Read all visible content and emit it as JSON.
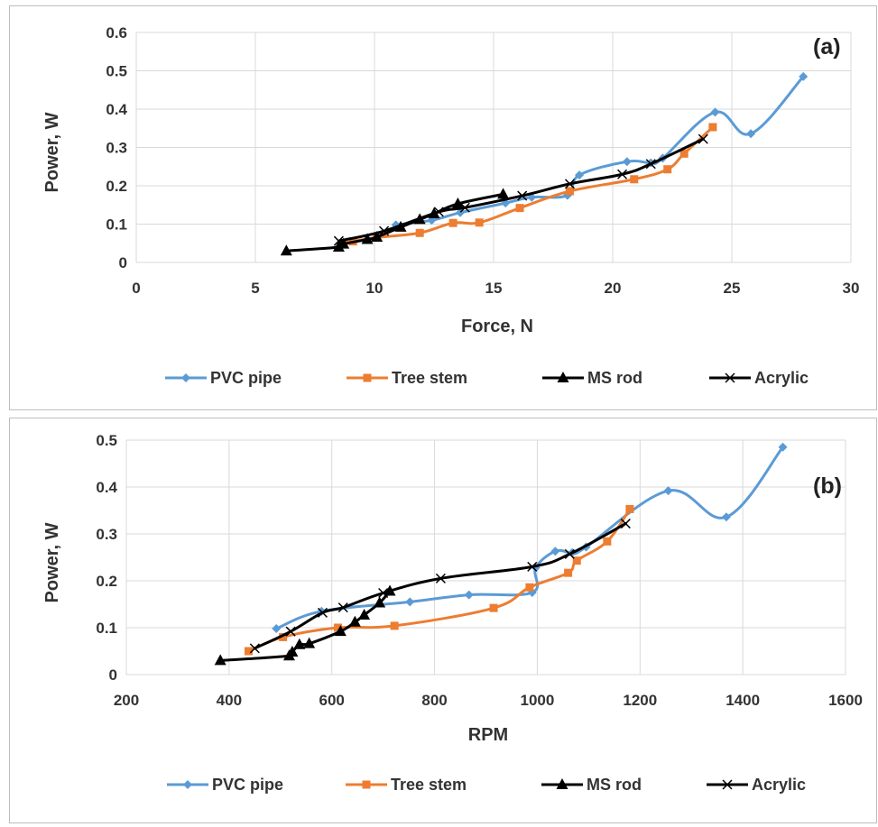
{
  "colors": {
    "pvc": "#5b9bd5",
    "tree": "#ed7d31",
    "ms": "#000000",
    "acrylic": "#000000",
    "grid": "#d9d9d9",
    "text": "#333333"
  },
  "chart_data": [
    {
      "type": "line",
      "panel_label": "(a)",
      "xlabel": "Force, N",
      "ylabel": "Power, W",
      "xlim": [
        0,
        30
      ],
      "ylim": [
        0,
        0.6
      ],
      "xticks": [
        0,
        5,
        10,
        15,
        20,
        25,
        30
      ],
      "yticks": [
        0,
        0.1,
        0.2,
        0.3,
        0.4,
        0.5,
        0.6
      ],
      "grid": true,
      "legend_position": "bottom",
      "series": [
        {
          "name": "PVC pipe",
          "marker": "diamond",
          "color": "#5b9bd5",
          "points": [
            [
              10.9,
              0.098
            ],
            [
              12.4,
              0.11
            ],
            [
              13.6,
              0.13
            ],
            [
              15.5,
              0.155
            ],
            [
              16.6,
              0.17
            ],
            [
              18.1,
              0.175
            ],
            [
              18.6,
              0.228
            ],
            [
              20.6,
              0.263
            ],
            [
              21.6,
              0.26
            ],
            [
              22.1,
              0.272
            ],
            [
              24.3,
              0.392
            ],
            [
              25.8,
              0.336
            ],
            [
              28.0,
              0.485
            ]
          ]
        },
        {
          "name": "Tree stem",
          "marker": "square",
          "color": "#ed7d31",
          "points": [
            [
              8.7,
              0.05
            ],
            [
              9.1,
              0.055
            ],
            [
              10.1,
              0.065
            ],
            [
              11.9,
              0.077
            ],
            [
              13.3,
              0.103
            ],
            [
              14.4,
              0.104
            ],
            [
              16.1,
              0.142
            ],
            [
              18.2,
              0.186
            ],
            [
              20.9,
              0.217
            ],
            [
              22.3,
              0.243
            ],
            [
              23.0,
              0.284
            ],
            [
              24.2,
              0.353
            ]
          ]
        },
        {
          "name": "MS rod",
          "marker": "triangle",
          "color": "#000000",
          "points": [
            [
              6.3,
              0.03
            ],
            [
              8.5,
              0.04
            ],
            [
              8.7,
              0.048
            ],
            [
              9.7,
              0.06
            ],
            [
              10.1,
              0.066
            ],
            [
              11.1,
              0.092
            ],
            [
              11.9,
              0.112
            ],
            [
              12.5,
              0.127
            ],
            [
              13.5,
              0.153
            ],
            [
              15.4,
              0.178
            ]
          ]
        },
        {
          "name": "Acrylic",
          "marker": "x",
          "color": "#000000",
          "points": [
            [
              8.5,
              0.056
            ],
            [
              10.4,
              0.082
            ],
            [
              12.7,
              0.132
            ],
            [
              13.8,
              0.143
            ],
            [
              16.2,
              0.174
            ],
            [
              18.2,
              0.205
            ],
            [
              20.4,
              0.23
            ],
            [
              21.6,
              0.257
            ],
            [
              23.8,
              0.322
            ]
          ]
        }
      ]
    },
    {
      "type": "line",
      "panel_label": "(b)",
      "xlabel": "RPM",
      "ylabel": "Power, W",
      "xlim": [
        200,
        1600
      ],
      "ylim": [
        0,
        0.5
      ],
      "xticks": [
        200,
        400,
        600,
        800,
        1000,
        1200,
        1400,
        1600
      ],
      "yticks": [
        0,
        0.1,
        0.2,
        0.3,
        0.4,
        0.5
      ],
      "grid": true,
      "legend_position": "bottom",
      "series": [
        {
          "name": "PVC pipe",
          "marker": "diamond",
          "color": "#5b9bd5",
          "points": [
            [
              492,
              0.098
            ],
            [
              580,
              0.135
            ],
            [
              752,
              0.155
            ],
            [
              867,
              0.17
            ],
            [
              990,
              0.175
            ],
            [
              997,
              0.228
            ],
            [
              1035,
              0.263
            ],
            [
              1068,
              0.26
            ],
            [
              1095,
              0.272
            ],
            [
              1255,
              0.392
            ],
            [
              1368,
              0.336
            ],
            [
              1478,
              0.485
            ]
          ]
        },
        {
          "name": "Tree stem",
          "marker": "square",
          "color": "#ed7d31",
          "points": [
            [
              438,
              0.05
            ],
            [
              505,
              0.08
            ],
            [
              612,
              0.1
            ],
            [
              722,
              0.104
            ],
            [
              915,
              0.142
            ],
            [
              985,
              0.186
            ],
            [
              1060,
              0.217
            ],
            [
              1077,
              0.243
            ],
            [
              1136,
              0.284
            ],
            [
              1180,
              0.353
            ]
          ]
        },
        {
          "name": "MS rod",
          "marker": "triangle",
          "color": "#000000",
          "points": [
            [
              383,
              0.03
            ],
            [
              517,
              0.04
            ],
            [
              523,
              0.048
            ],
            [
              537,
              0.064
            ],
            [
              556,
              0.066
            ],
            [
              617,
              0.092
            ],
            [
              645,
              0.112
            ],
            [
              663,
              0.127
            ],
            [
              693,
              0.153
            ],
            [
              713,
              0.178
            ]
          ]
        },
        {
          "name": "Acrylic",
          "marker": "x",
          "color": "#000000",
          "points": [
            [
              450,
              0.056
            ],
            [
              520,
              0.092
            ],
            [
              582,
              0.132
            ],
            [
              622,
              0.143
            ],
            [
              700,
              0.174
            ],
            [
              812,
              0.205
            ],
            [
              990,
              0.23
            ],
            [
              1063,
              0.257
            ],
            [
              1172,
              0.322
            ]
          ]
        }
      ]
    }
  ]
}
